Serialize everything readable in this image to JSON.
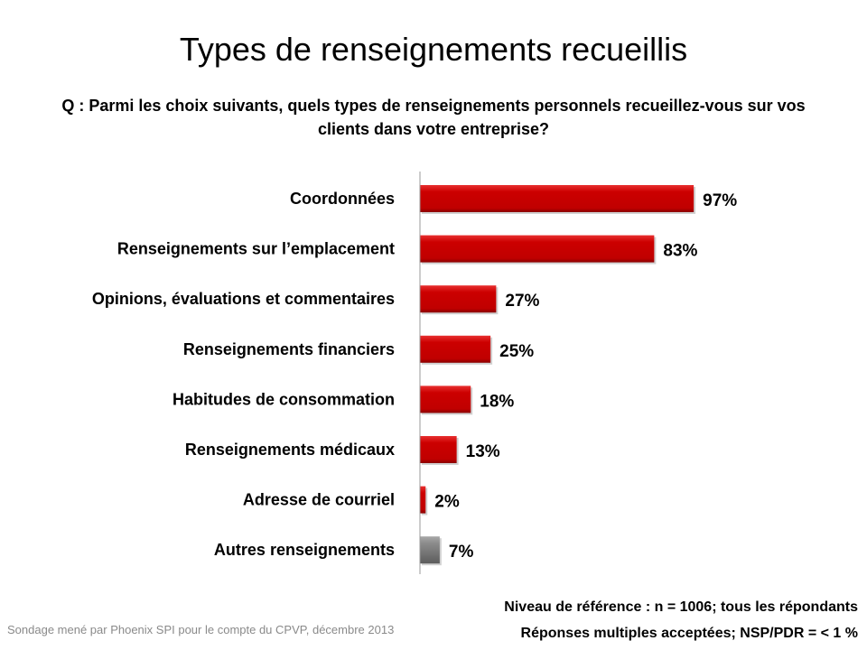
{
  "title": "Types de renseignements recueillis",
  "question": "Q : Parmi les choix suivants, quels types de renseignements personnels recueillez-vous sur vos clients dans votre entreprise?",
  "footer": {
    "source": "Sondage mené par Phoenix SPI pour le compte du CPVP, décembre 2013",
    "base": "Niveau de référence : n = 1006; tous les répondants",
    "multiple": "Réponses multiples acceptées; NSP/PDR = < 1 %"
  },
  "chart_data": {
    "type": "bar",
    "orientation": "horizontal",
    "categories": [
      "Coordonnées",
      "Renseignements sur l’emplacement",
      "Opinions, évaluations et commentaires",
      "Renseignements financiers",
      "Habitudes de consommation",
      "Renseignements médicaux",
      "Adresse de courriel",
      "Autres renseignements"
    ],
    "values": [
      97,
      83,
      27,
      25,
      18,
      13,
      2,
      7
    ],
    "data_labels": [
      "97%",
      "83%",
      "27%",
      "25%",
      "18%",
      "13%",
      "2%",
      "7%"
    ],
    "colors": [
      "#cc0000",
      "#cc0000",
      "#cc0000",
      "#cc0000",
      "#cc0000",
      "#cc0000",
      "#cc0000",
      "#8c8c8c"
    ],
    "xlim": [
      0,
      100
    ],
    "grid": false,
    "legend": "none"
  }
}
